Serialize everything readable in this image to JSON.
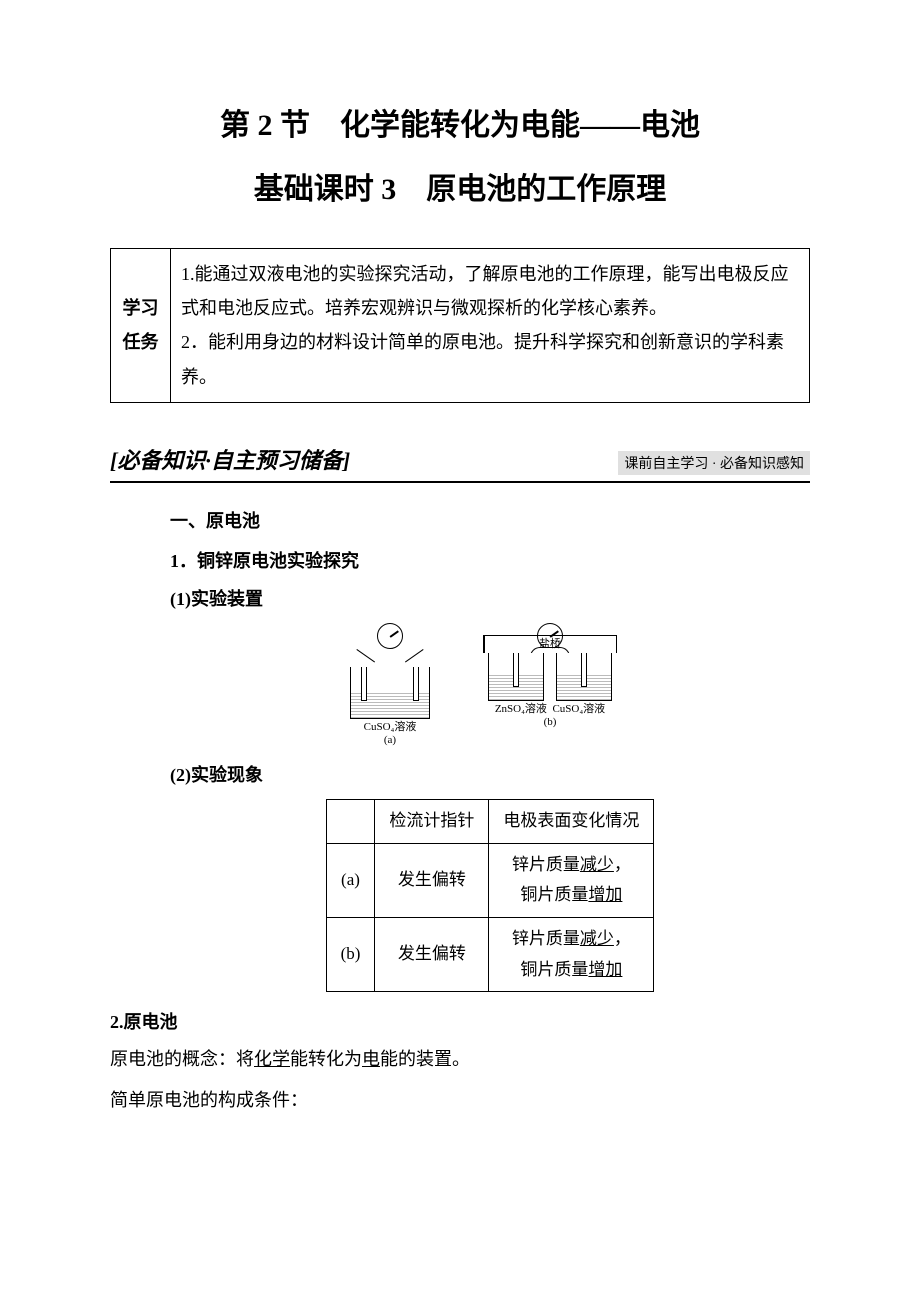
{
  "titles": {
    "main": "第 2 节　化学能转化为电能——电池",
    "sub": "基础课时 3　原电池的工作原理"
  },
  "task": {
    "label": "学习任务",
    "text": "1.能通过双液电池的实验探究活动，了解原电池的工作原理，能写出电极反应式和电池反应式。培养宏观辨识与微观探析的化学核心素养。\n2．能利用身边的材料设计简单的原电池。提升科学探究和创新意识的学科素养。"
  },
  "prep_header": {
    "left": "[必备知识·自主预习储备]",
    "right": "课前自主学习 · 必备知识感知"
  },
  "sectionA": {
    "heading": "一、原电池",
    "item1": "1．铜锌原电池实验探究",
    "device_label": "(1)实验装置",
    "phenomena_label": "(2)实验现象"
  },
  "diagram": {
    "zn": "Zn",
    "cu": "Cu",
    "bridge": "盐桥",
    "caption_a_line1": "CuSO₄溶液",
    "caption_a_line2": "(a)",
    "caption_b_left": "ZnSO₄溶液",
    "caption_b_right": "CuSO₄溶液",
    "caption_b_line2": "(b)"
  },
  "exp_table": {
    "headers": [
      "",
      "检流计指针",
      "电极表面变化情况"
    ],
    "rows": [
      {
        "id": "(a)",
        "galvanometer": "发生偏转",
        "change_pre1": "锌片质量",
        "change_u1": "减少",
        "change_suf1": "，",
        "change_pre2": "铜片质量",
        "change_u2": "增加"
      },
      {
        "id": "(b)",
        "galvanometer": "发生偏转",
        "change_pre1": "锌片质量",
        "change_u1": "减少",
        "change_suf1": "，",
        "change_pre2": "铜片质量",
        "change_u2": "增加"
      }
    ]
  },
  "sectionA2": {
    "heading": "2.原电池",
    "concept_pre": "原电池的概念：将",
    "concept_u1": "化学",
    "concept_mid": "能转化为",
    "concept_u2": "电",
    "concept_suf": "能的装置。",
    "conditions": "简单原电池的构成条件："
  },
  "colors": {
    "text": "#000000",
    "background": "#ffffff",
    "band": "#e0e0e0",
    "liquid": "#bbbbbb"
  },
  "fonts": {
    "title_pt": 30,
    "body_pt": 18,
    "small_pt": 11,
    "header_band_pt": 14,
    "section_left_pt": 22,
    "table_pt": 17
  }
}
